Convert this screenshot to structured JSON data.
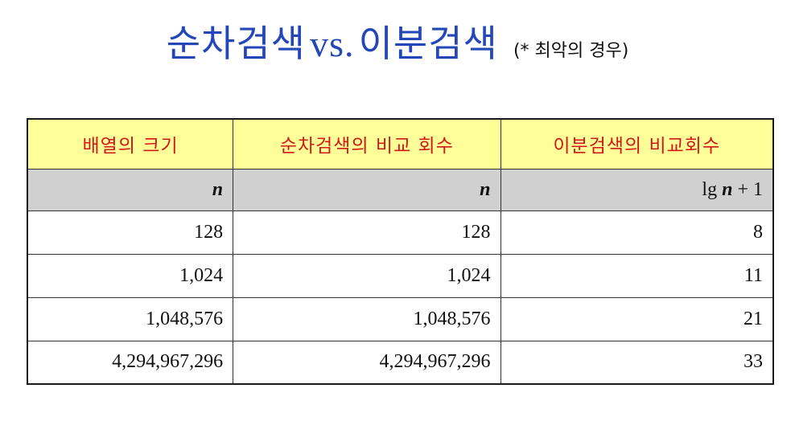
{
  "title": {
    "main_left": "순차검색",
    "vs": "vs.",
    "main_right": "이분검색",
    "note": "(* 최악의 경우)"
  },
  "table": {
    "headers": [
      "배열의 크기",
      "순차검색의 비교 회수",
      "이분검색의 비교회수"
    ],
    "formula_row": {
      "col1": "n",
      "col2": "n",
      "col3_prefix": "lg ",
      "col3_var": "n",
      "col3_suffix": " + 1"
    },
    "rows": [
      [
        "128",
        "128",
        "8"
      ],
      [
        "1,024",
        "1,024",
        "11"
      ],
      [
        "1,048,576",
        "1,048,576",
        "21"
      ],
      [
        "4,294,967,296",
        "4,294,967,296",
        "33"
      ]
    ]
  },
  "colors": {
    "title": "#2447b8",
    "header_bg": "#ffff99",
    "header_text": "#d01818",
    "formula_bg": "#d0d0d0"
  }
}
